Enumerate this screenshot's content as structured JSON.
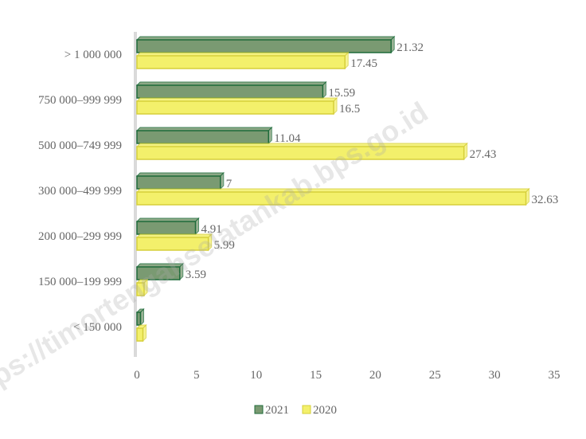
{
  "chart_data": {
    "type": "bar",
    "orientation": "horizontal",
    "title": "",
    "xlabel": "",
    "ylabel": "",
    "categories": [
      "> 1 000 000",
      "750 000–999 999",
      "500 000–749 999",
      "300 000–499 999",
      "200 000–299 999",
      "150 000–199 999",
      "< 150 000"
    ],
    "series": [
      {
        "name": "2021",
        "color": "#7a9a72",
        "edge": "#1e6b3a",
        "values": [
          21.32,
          15.59,
          11.04,
          7,
          4.91,
          3.59,
          0.3
        ]
      },
      {
        "name": "2020",
        "color": "#f3f06b",
        "edge": "#d6cf3a",
        "values": [
          17.45,
          16.5,
          27.43,
          32.63,
          5.99,
          0.6,
          0.5
        ]
      }
    ],
    "data_labels": [
      [
        "21.32",
        "15.59",
        "11.04",
        "7",
        "4.91",
        "3.59",
        ""
      ],
      [
        "17.45",
        "16.5",
        "27.43",
        "32.63",
        "5.99",
        "",
        ""
      ]
    ],
    "xlim": [
      0,
      35
    ],
    "xticks": [
      "0",
      "5",
      "10",
      "15",
      "20",
      "25",
      "30",
      "35"
    ],
    "grid": false,
    "legend": "bottom"
  },
  "watermark": {
    "text": "https://timortengahselatankab.bps.go.id"
  }
}
